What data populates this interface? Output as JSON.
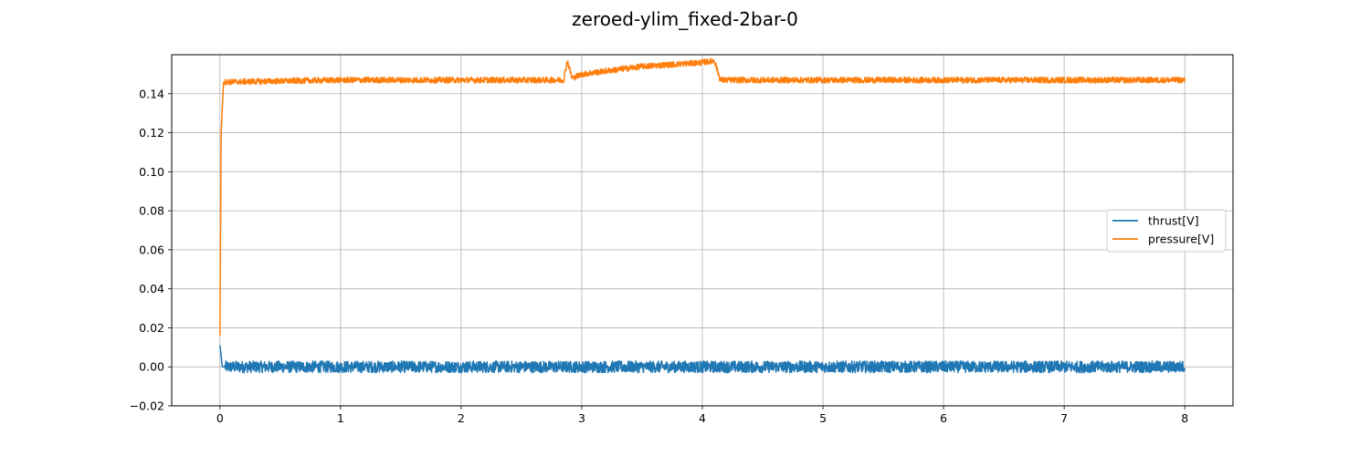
{
  "chart_data": {
    "type": "line",
    "title": "zeroed-ylim_fixed-2bar-0",
    "xlabel": "",
    "ylabel": "",
    "xlim": [
      -0.4,
      8.4
    ],
    "ylim": [
      -0.02,
      0.16
    ],
    "xticks": [
      "0",
      "1",
      "2",
      "3",
      "4",
      "5",
      "6",
      "7",
      "8"
    ],
    "yticks": [
      "−0.02",
      "0.00",
      "0.02",
      "0.04",
      "0.06",
      "0.08",
      "0.10",
      "0.12",
      "0.14"
    ],
    "grid": true,
    "legend_position": "center-right",
    "series": [
      {
        "name": "thrust[V]",
        "color": "#1f77b4",
        "profile": [
          [
            0,
            0.011
          ],
          [
            0.02,
            0.0
          ],
          [
            0.5,
            0.0
          ],
          [
            1.0,
            0.0
          ],
          [
            2.0,
            0.0
          ],
          [
            3.0,
            0.0
          ],
          [
            4.0,
            0.0
          ],
          [
            5.0,
            0.0
          ],
          [
            6.0,
            0.0
          ],
          [
            7.0,
            0.0
          ],
          [
            8.0,
            0.0
          ]
        ],
        "noise_amplitude": 0.003
      },
      {
        "name": "pressure[V]",
        "color": "#ff7f0e",
        "profile": [
          [
            0,
            0.016
          ],
          [
            0.01,
            0.12
          ],
          [
            0.03,
            0.146
          ],
          [
            1.0,
            0.147
          ],
          [
            2.85,
            0.147
          ],
          [
            2.88,
            0.157
          ],
          [
            2.92,
            0.148
          ],
          [
            3.0,
            0.15
          ],
          [
            3.5,
            0.154
          ],
          [
            4.0,
            0.156
          ],
          [
            4.1,
            0.157
          ],
          [
            4.15,
            0.147
          ],
          [
            8.0,
            0.147
          ]
        ],
        "noise_amplitude": 0.0015
      }
    ]
  }
}
